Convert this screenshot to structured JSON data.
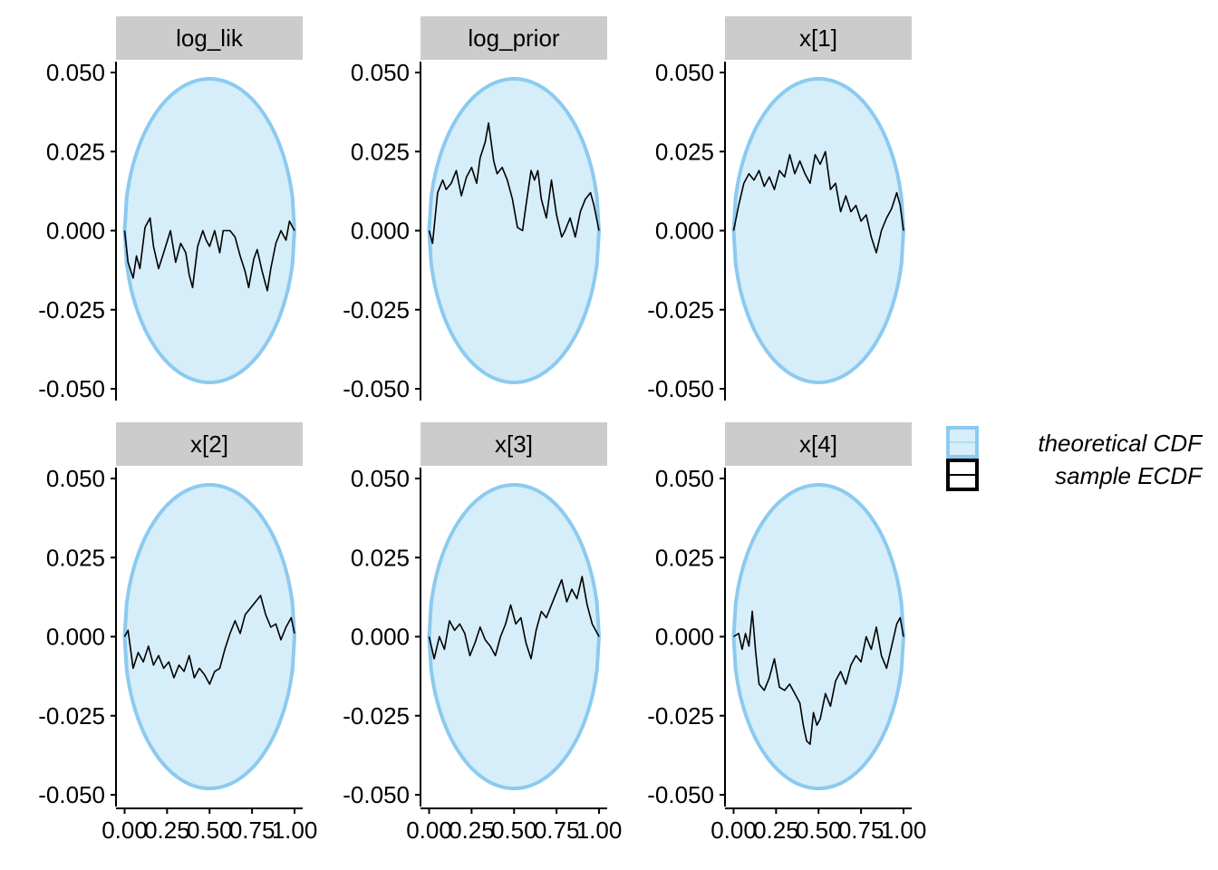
{
  "chart_data": {
    "type": "line",
    "title": "",
    "xlabel": "",
    "ylabel": "",
    "xlim": [
      0,
      1
    ],
    "ylim": [
      -0.05,
      0.05
    ],
    "x_ticks": [
      "0.00",
      "0.25",
      "0.50",
      "0.75",
      "1.00"
    ],
    "y_ticks": [
      "-0.050",
      "-0.025",
      "0.000",
      "0.025",
      "0.050"
    ],
    "band": {
      "half_width_max": 0.048,
      "fill": "#d6eef9",
      "stroke": "#8ccaf0"
    },
    "line_color": "#000000",
    "legend": {
      "placement": "right",
      "items": [
        {
          "label": "theoretical CDF",
          "color": "#8ccaf0",
          "kind": "band"
        },
        {
          "label": "sample ECDF",
          "color": "#000000",
          "kind": "line"
        }
      ]
    },
    "facets": [
      {
        "name": "log_lik",
        "x": [
          0,
          0.02,
          0.05,
          0.07,
          0.09,
          0.12,
          0.15,
          0.17,
          0.2,
          0.23,
          0.27,
          0.3,
          0.33,
          0.36,
          0.38,
          0.4,
          0.43,
          0.46,
          0.48,
          0.5,
          0.53,
          0.56,
          0.58,
          0.6,
          0.62,
          0.65,
          0.68,
          0.71,
          0.73,
          0.76,
          0.78,
          0.81,
          0.84,
          0.86,
          0.89,
          0.92,
          0.95,
          0.97,
          1
        ],
        "y": [
          0,
          -0.01,
          -0.015,
          -0.008,
          -0.012,
          0.001,
          0.004,
          -0.005,
          -0.012,
          -0.007,
          0,
          -0.01,
          -0.004,
          -0.007,
          -0.014,
          -0.018,
          -0.005,
          0,
          -0.003,
          -0.005,
          0,
          -0.007,
          0,
          0,
          0,
          -0.002,
          -0.008,
          -0.013,
          -0.018,
          -0.009,
          -0.006,
          -0.013,
          -0.019,
          -0.012,
          -0.004,
          0,
          -0.003,
          0.003,
          0
        ]
      },
      {
        "name": "log_prior",
        "x": [
          0,
          0.02,
          0.05,
          0.08,
          0.1,
          0.13,
          0.16,
          0.19,
          0.22,
          0.25,
          0.28,
          0.3,
          0.33,
          0.35,
          0.38,
          0.4,
          0.43,
          0.46,
          0.49,
          0.52,
          0.55,
          0.57,
          0.6,
          0.62,
          0.64,
          0.66,
          0.69,
          0.72,
          0.75,
          0.78,
          0.8,
          0.83,
          0.86,
          0.89,
          0.92,
          0.95,
          0.97,
          1
        ],
        "y": [
          0,
          -0.004,
          0.012,
          0.016,
          0.013,
          0.015,
          0.019,
          0.011,
          0.017,
          0.02,
          0.015,
          0.023,
          0.028,
          0.034,
          0.022,
          0.018,
          0.02,
          0.016,
          0.01,
          0.001,
          0,
          0.008,
          0.019,
          0.016,
          0.019,
          0.01,
          0.004,
          0.016,
          0.005,
          -0.002,
          0,
          0.004,
          -0.002,
          0.006,
          0.01,
          0.012,
          0.008,
          0
        ]
      },
      {
        "name": "x[1]",
        "x": [
          0,
          0.03,
          0.06,
          0.09,
          0.12,
          0.15,
          0.18,
          0.21,
          0.24,
          0.27,
          0.3,
          0.33,
          0.36,
          0.39,
          0.42,
          0.45,
          0.48,
          0.51,
          0.54,
          0.57,
          0.6,
          0.63,
          0.66,
          0.69,
          0.72,
          0.75,
          0.78,
          0.81,
          0.84,
          0.87,
          0.9,
          0.93,
          0.96,
          0.98,
          1
        ],
        "y": [
          0,
          0.008,
          0.015,
          0.018,
          0.016,
          0.019,
          0.014,
          0.017,
          0.013,
          0.019,
          0.017,
          0.024,
          0.018,
          0.022,
          0.018,
          0.015,
          0.024,
          0.021,
          0.025,
          0.013,
          0.015,
          0.006,
          0.011,
          0.006,
          0.008,
          0.003,
          0.005,
          -0.002,
          -0.007,
          0,
          0.004,
          0.007,
          0.012,
          0.008,
          0
        ]
      },
      {
        "name": "x[2]",
        "x": [
          0,
          0.02,
          0.05,
          0.08,
          0.11,
          0.14,
          0.17,
          0.2,
          0.23,
          0.26,
          0.29,
          0.32,
          0.35,
          0.38,
          0.41,
          0.44,
          0.47,
          0.5,
          0.53,
          0.56,
          0.59,
          0.62,
          0.65,
          0.68,
          0.71,
          0.74,
          0.77,
          0.8,
          0.83,
          0.86,
          0.89,
          0.92,
          0.95,
          0.98,
          1
        ],
        "y": [
          0,
          0.002,
          -0.01,
          -0.005,
          -0.008,
          -0.003,
          -0.009,
          -0.006,
          -0.01,
          -0.008,
          -0.013,
          -0.009,
          -0.011,
          -0.006,
          -0.013,
          -0.01,
          -0.012,
          -0.015,
          -0.011,
          -0.01,
          -0.004,
          0.001,
          0.005,
          0.001,
          0.007,
          0.009,
          0.011,
          0.013,
          0.007,
          0.003,
          0.004,
          -0.001,
          0.003,
          0.006,
          0.001
        ]
      },
      {
        "name": "x[3]",
        "x": [
          0,
          0.03,
          0.06,
          0.09,
          0.12,
          0.15,
          0.18,
          0.21,
          0.24,
          0.27,
          0.3,
          0.33,
          0.36,
          0.39,
          0.42,
          0.45,
          0.48,
          0.51,
          0.54,
          0.57,
          0.6,
          0.63,
          0.66,
          0.69,
          0.72,
          0.75,
          0.78,
          0.81,
          0.84,
          0.87,
          0.9,
          0.93,
          0.96,
          1
        ],
        "y": [
          0,
          -0.007,
          0,
          -0.004,
          0.005,
          0.002,
          0.004,
          0.001,
          -0.006,
          -0.002,
          0.003,
          -0.001,
          -0.003,
          -0.006,
          0,
          0.004,
          0.01,
          0.004,
          0.006,
          -0.002,
          -0.007,
          0.002,
          0.008,
          0.006,
          0.01,
          0.014,
          0.018,
          0.011,
          0.015,
          0.012,
          0.019,
          0.01,
          0.004,
          0
        ]
      },
      {
        "name": "x[4]",
        "x": [
          0,
          0.03,
          0.05,
          0.07,
          0.09,
          0.11,
          0.13,
          0.15,
          0.18,
          0.21,
          0.24,
          0.27,
          0.3,
          0.33,
          0.36,
          0.39,
          0.41,
          0.43,
          0.45,
          0.47,
          0.49,
          0.51,
          0.54,
          0.57,
          0.6,
          0.63,
          0.66,
          0.69,
          0.72,
          0.75,
          0.78,
          0.81,
          0.84,
          0.87,
          0.9,
          0.93,
          0.96,
          0.98,
          1
        ],
        "y": [
          0,
          0.001,
          -0.004,
          0.001,
          -0.003,
          0.008,
          -0.005,
          -0.015,
          -0.017,
          -0.013,
          -0.007,
          -0.016,
          -0.017,
          -0.015,
          -0.018,
          -0.021,
          -0.028,
          -0.033,
          -0.034,
          -0.024,
          -0.028,
          -0.026,
          -0.018,
          -0.022,
          -0.014,
          -0.011,
          -0.015,
          -0.009,
          -0.006,
          -0.008,
          0,
          -0.004,
          0.003,
          -0.006,
          -0.01,
          -0.003,
          0.004,
          0.006,
          0
        ]
      }
    ]
  }
}
